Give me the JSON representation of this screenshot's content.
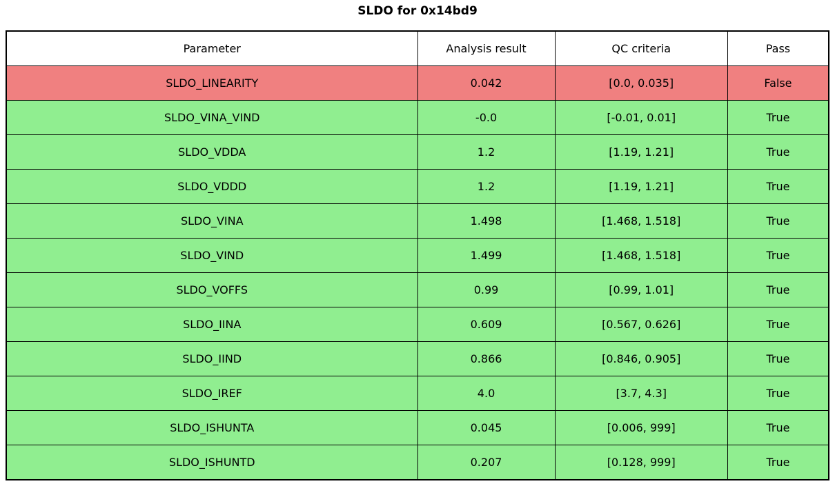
{
  "title": "SLDO for 0x14bd9",
  "table": {
    "columns": [
      "Parameter",
      "Analysis result",
      "QC criteria",
      "Pass"
    ],
    "rows": [
      {
        "parameter": "SLDO_LINEARITY",
        "result": "0.042",
        "criteria": "[0.0, 0.035]",
        "pass": "False",
        "status": "fail"
      },
      {
        "parameter": "SLDO_VINA_VIND",
        "result": "-0.0",
        "criteria": "[-0.01, 0.01]",
        "pass": "True",
        "status": "pass"
      },
      {
        "parameter": "SLDO_VDDA",
        "result": "1.2",
        "criteria": "[1.19, 1.21]",
        "pass": "True",
        "status": "pass"
      },
      {
        "parameter": "SLDO_VDDD",
        "result": "1.2",
        "criteria": "[1.19, 1.21]",
        "pass": "True",
        "status": "pass"
      },
      {
        "parameter": "SLDO_VINA",
        "result": "1.498",
        "criteria": "[1.468, 1.518]",
        "pass": "True",
        "status": "pass"
      },
      {
        "parameter": "SLDO_VIND",
        "result": "1.499",
        "criteria": "[1.468, 1.518]",
        "pass": "True",
        "status": "pass"
      },
      {
        "parameter": "SLDO_VOFFS",
        "result": "0.99",
        "criteria": "[0.99, 1.01]",
        "pass": "True",
        "status": "pass"
      },
      {
        "parameter": "SLDO_IINA",
        "result": "0.609",
        "criteria": "[0.567, 0.626]",
        "pass": "True",
        "status": "pass"
      },
      {
        "parameter": "SLDO_IIND",
        "result": "0.866",
        "criteria": "[0.846, 0.905]",
        "pass": "True",
        "status": "pass"
      },
      {
        "parameter": "SLDO_IREF",
        "result": "4.0",
        "criteria": "[3.7, 4.3]",
        "pass": "True",
        "status": "pass"
      },
      {
        "parameter": "SLDO_ISHUNTA",
        "result": "0.045",
        "criteria": "[0.006, 999]",
        "pass": "True",
        "status": "pass"
      },
      {
        "parameter": "SLDO_ISHUNTD",
        "result": "0.207",
        "criteria": "[0.128, 999]",
        "pass": "True",
        "status": "pass"
      }
    ]
  },
  "colors": {
    "header_row_bg": "#ffffff",
    "pass_row_bg": "#90ee90",
    "fail_row_bg": "#f08080",
    "border": "#000000",
    "text": "#000000"
  },
  "chart_data": {
    "type": "table",
    "title": "SLDO for 0x14bd9",
    "columns": [
      "Parameter",
      "Analysis result",
      "QC criteria",
      "Pass"
    ],
    "rows": [
      [
        "SLDO_LINEARITY",
        "0.042",
        "[0.0, 0.035]",
        "False"
      ],
      [
        "SLDO_VINA_VIND",
        "-0.0",
        "[-0.01, 0.01]",
        "True"
      ],
      [
        "SLDO_VDDA",
        "1.2",
        "[1.19, 1.21]",
        "True"
      ],
      [
        "SLDO_VDDD",
        "1.2",
        "[1.19, 1.21]",
        "True"
      ],
      [
        "SLDO_VINA",
        "1.498",
        "[1.468, 1.518]",
        "True"
      ],
      [
        "SLDO_VIND",
        "1.499",
        "[1.468, 1.518]",
        "True"
      ],
      [
        "SLDO_VOFFS",
        "0.99",
        "[0.99, 1.01]",
        "True"
      ],
      [
        "SLDO_IINA",
        "0.609",
        "[0.567, 0.626]",
        "True"
      ],
      [
        "SLDO_IIND",
        "0.866",
        "[0.846, 0.905]",
        "True"
      ],
      [
        "SLDO_IREF",
        "4.0",
        "[3.7, 4.3]",
        "True"
      ],
      [
        "SLDO_ISHUNTA",
        "0.045",
        "[0.006, 999]",
        "True"
      ],
      [
        "SLDO_ISHUNTD",
        "0.207",
        "[0.128, 999]",
        "True"
      ]
    ],
    "row_status": [
      "fail",
      "pass",
      "pass",
      "pass",
      "pass",
      "pass",
      "pass",
      "pass",
      "pass",
      "pass",
      "pass",
      "pass"
    ],
    "legend_position": "none",
    "grid": true
  }
}
